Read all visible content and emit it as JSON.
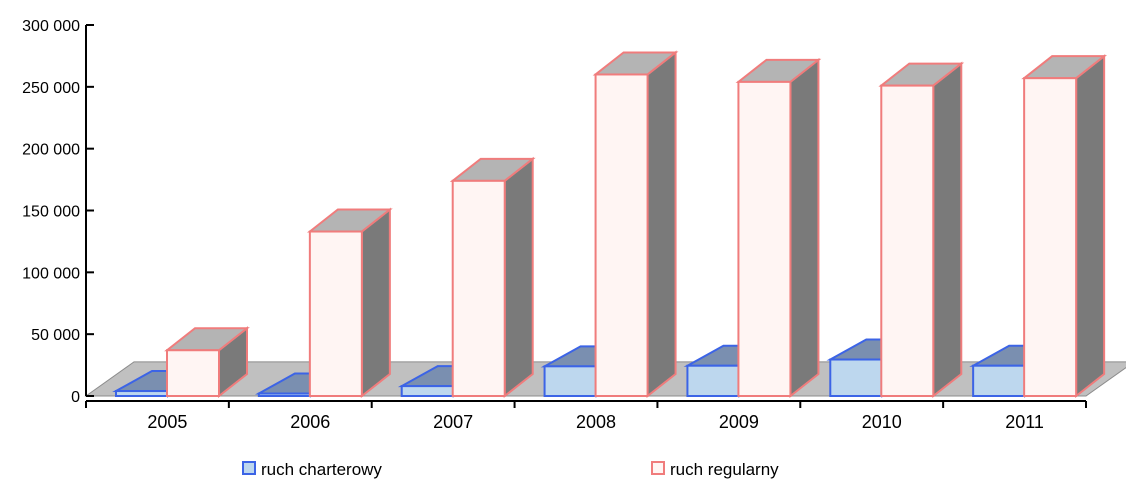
{
  "chart_data": {
    "type": "bar",
    "style": "3d-clustered-column",
    "categories": [
      "2005",
      "2006",
      "2007",
      "2008",
      "2009",
      "2010",
      "2011"
    ],
    "series": [
      {
        "name": "ruch charterowy",
        "values": [
          4000,
          2000,
          8000,
          24000,
          24500,
          29500,
          24500
        ]
      },
      {
        "name": "ruch regularny",
        "values": [
          37000,
          133000,
          174000,
          260000,
          254000,
          251000,
          257000
        ]
      }
    ],
    "y_ticks": [
      "0",
      "50 000",
      "100 000",
      "150 000",
      "200 000",
      "250 000",
      "300 000"
    ],
    "ylim": [
      0,
      300000
    ],
    "grid": false,
    "legend": "bottom",
    "colors": {
      "charter_fill": "#bdd7ee",
      "charter_stroke": "#3c64e6",
      "charter_dark": "#7a8fb0",
      "regular_fill": "#fff5f3",
      "regular_stroke": "#f07c7c",
      "regular_side": "#7a7a7a",
      "regular_top": "#b4b4b4",
      "floor": "#c0c0c0"
    }
  }
}
